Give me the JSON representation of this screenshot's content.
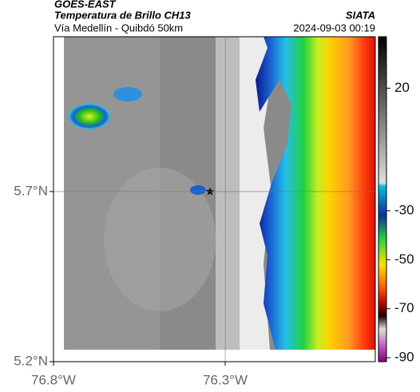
{
  "header": {
    "source": "GOES-EAST",
    "title": "Temperatura de Brillo CH13",
    "subtitle": "Vía Medellín - Quibdó 50km",
    "brand": "SIATA",
    "timestamp": "2024-09-03 00:19"
  },
  "map": {
    "xlim": [
      -76.8,
      -75.863
    ],
    "ylim": [
      5.2,
      6.155
    ],
    "xticks": [
      {
        "value": -76.8,
        "label": "76.8°W"
      },
      {
        "value": -76.3,
        "label": "76.3°W"
      }
    ],
    "yticks": [
      {
        "value": 5.2,
        "label": "5.2°N"
      },
      {
        "value": 5.7,
        "label": "5.7°N"
      }
    ],
    "grid": true
  },
  "colorbar": {
    "lim": [
      -91.6,
      41
    ],
    "ticks": [
      20,
      -30,
      -50,
      -70,
      -90
    ]
  }
}
